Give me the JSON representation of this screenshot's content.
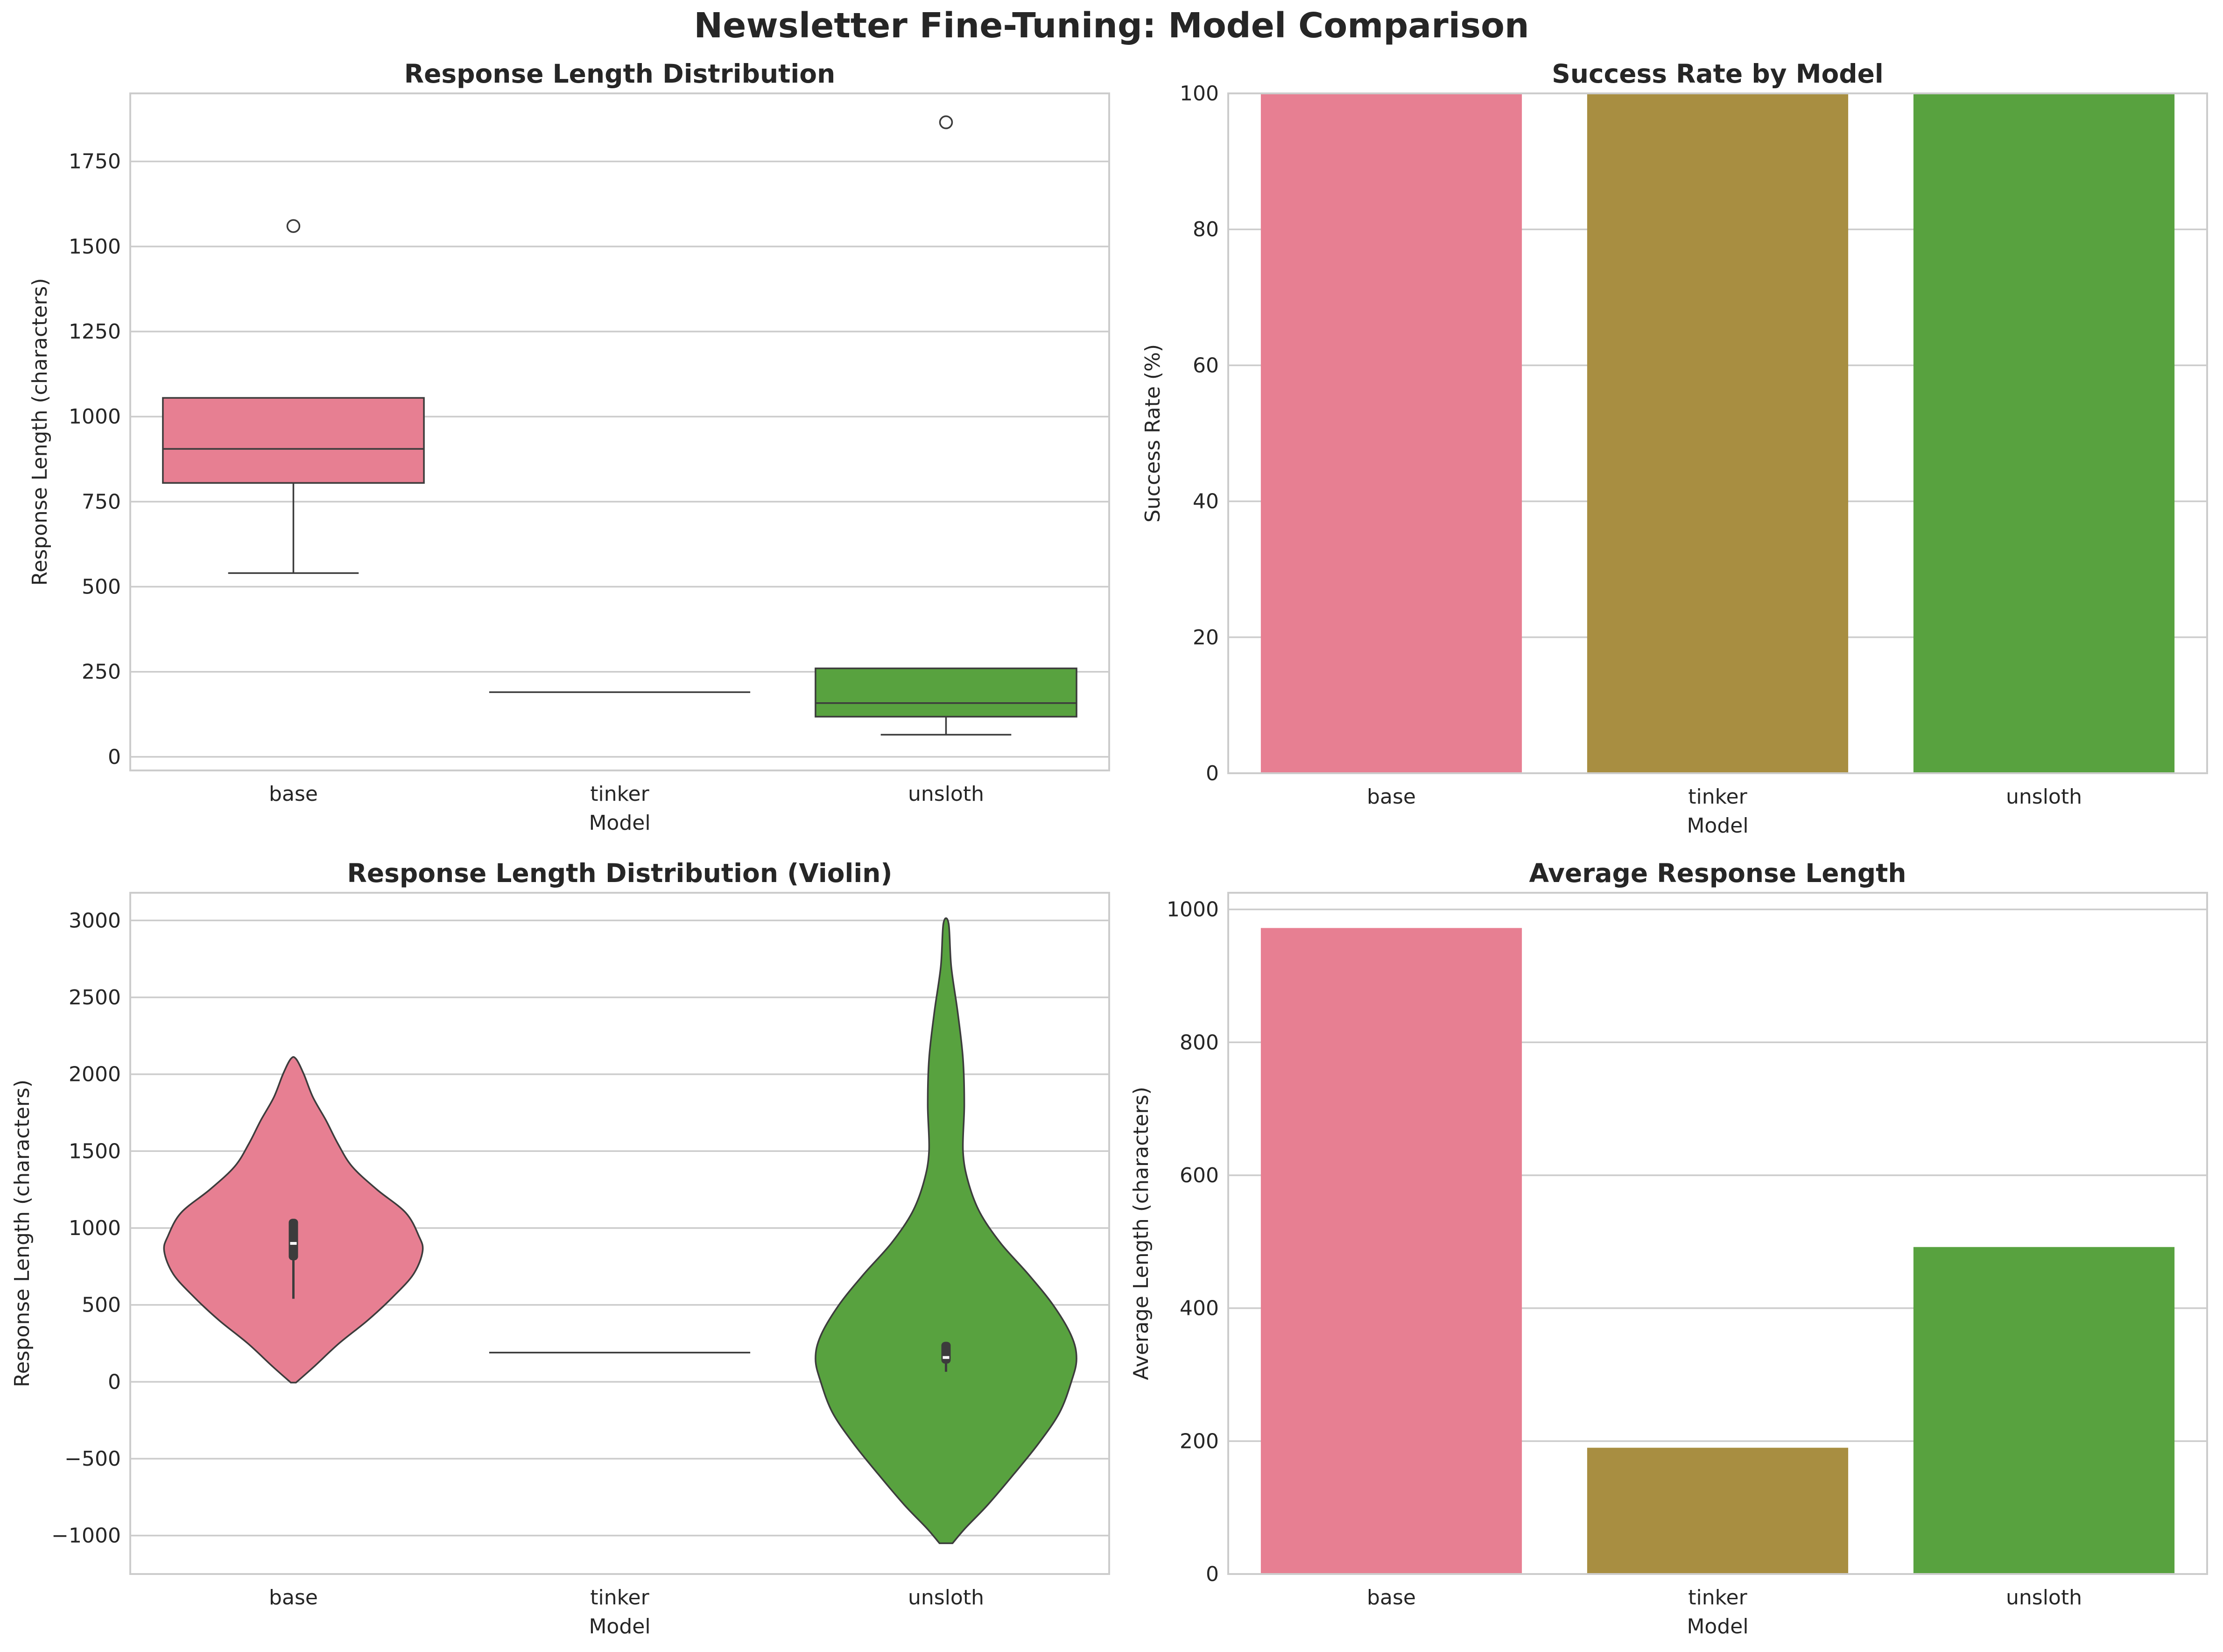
{
  "figure": {
    "title": "Newsletter Fine-Tuning: Model Comparison"
  },
  "colors": {
    "base": "#e77f92",
    "tinker": "#a88e41",
    "unsloth": "#58a23f",
    "grid": "#cccccc",
    "spine": "#cccccc",
    "text": "#262626",
    "line": "#3c3c3c"
  },
  "chart_data": [
    {
      "type": "box",
      "title": "Response Length Distribution",
      "xlabel": "Model",
      "ylabel": "Response Length (characters)",
      "categories": [
        "base",
        "tinker",
        "unsloth"
      ],
      "ylim": [
        -40,
        1950
      ],
      "yticks": [
        0,
        250,
        500,
        750,
        1000,
        1250,
        1500,
        1750
      ],
      "ytick_labels": [
        "0",
        "250",
        "500",
        "750",
        "1000",
        "1250",
        "1500",
        "1750"
      ],
      "grid": true,
      "boxes": [
        {
          "min": 540,
          "q1": 805,
          "median": 905,
          "q3": 1055,
          "max": 1055,
          "outliers": [
            1560
          ]
        },
        {
          "min": 190,
          "q1": 190,
          "median": 190,
          "q3": 190,
          "max": 190,
          "outliers": []
        },
        {
          "min": 65,
          "q1": 118,
          "median": 158,
          "q3": 260,
          "max": 260,
          "outliers": [
            1865
          ]
        }
      ]
    },
    {
      "type": "bar",
      "title": "Success Rate by Model",
      "xlabel": "Model",
      "ylabel": "Success Rate (%)",
      "categories": [
        "base",
        "tinker",
        "unsloth"
      ],
      "values": [
        100,
        100,
        100
      ],
      "ylim": [
        0,
        100
      ],
      "yticks": [
        0,
        20,
        40,
        60,
        80,
        100
      ],
      "ytick_labels": [
        "0",
        "20",
        "40",
        "60",
        "80",
        "100"
      ],
      "grid": true
    },
    {
      "type": "violin",
      "title": "Response Length Distribution (Violin)",
      "xlabel": "Model",
      "ylabel": "Response Length (characters)",
      "categories": [
        "base",
        "tinker",
        "unsloth"
      ],
      "ylim": [
        -1250,
        3180
      ],
      "yticks": [
        -1000,
        -500,
        0,
        500,
        1000,
        1500,
        2000,
        2500,
        3000
      ],
      "ytick_labels": [
        "−1000",
        "−500",
        "0",
        "500",
        "1000",
        "1500",
        "2000",
        "2500",
        "3000"
      ],
      "grid": true,
      "violins": [
        {
          "profile": [
            [
              -5,
              0.02
            ],
            [
              100,
              0.16
            ],
            [
              250,
              0.35
            ],
            [
              400,
              0.57
            ],
            [
              550,
              0.76
            ],
            [
              700,
              0.92
            ],
            [
              850,
              0.99
            ],
            [
              950,
              0.96
            ],
            [
              1100,
              0.86
            ],
            [
              1250,
              0.64
            ],
            [
              1400,
              0.45
            ],
            [
              1550,
              0.34
            ],
            [
              1700,
              0.25
            ],
            [
              1850,
              0.15
            ],
            [
              2000,
              0.08
            ],
            [
              2100,
              0.02
            ]
          ],
          "q1": 790,
          "median": 900,
          "q3": 1060,
          "whisker_low": 540,
          "whisker_high": 1060
        },
        {
          "profile": [
            [
              190,
              1.0
            ]
          ],
          "line_only": true
        },
        {
          "profile": [
            [
              -1050,
              0.05
            ],
            [
              -950,
              0.15
            ],
            [
              -800,
              0.32
            ],
            [
              -600,
              0.52
            ],
            [
              -400,
              0.71
            ],
            [
              -200,
              0.87
            ],
            [
              0,
              0.96
            ],
            [
              150,
              1.0
            ],
            [
              300,
              0.96
            ],
            [
              500,
              0.82
            ],
            [
              700,
              0.63
            ],
            [
              900,
              0.42
            ],
            [
              1100,
              0.26
            ],
            [
              1300,
              0.17
            ],
            [
              1500,
              0.13
            ],
            [
              1800,
              0.14
            ],
            [
              2100,
              0.13
            ],
            [
              2400,
              0.09
            ],
            [
              2700,
              0.04
            ],
            [
              2980,
              0.02
            ]
          ],
          "q1": 118,
          "median": 158,
          "q3": 260,
          "whisker_low": 65,
          "whisker_high": 260
        }
      ]
    },
    {
      "type": "bar",
      "title": "Average Response Length",
      "xlabel": "Model",
      "ylabel": "Average Length (characters)",
      "categories": [
        "base",
        "tinker",
        "unsloth"
      ],
      "values": [
        972,
        190,
        492
      ],
      "ylim": [
        0,
        1025
      ],
      "yticks": [
        0,
        200,
        400,
        600,
        800,
        1000
      ],
      "ytick_labels": [
        "0",
        "200",
        "400",
        "600",
        "800",
        "1000"
      ],
      "grid": true
    }
  ]
}
